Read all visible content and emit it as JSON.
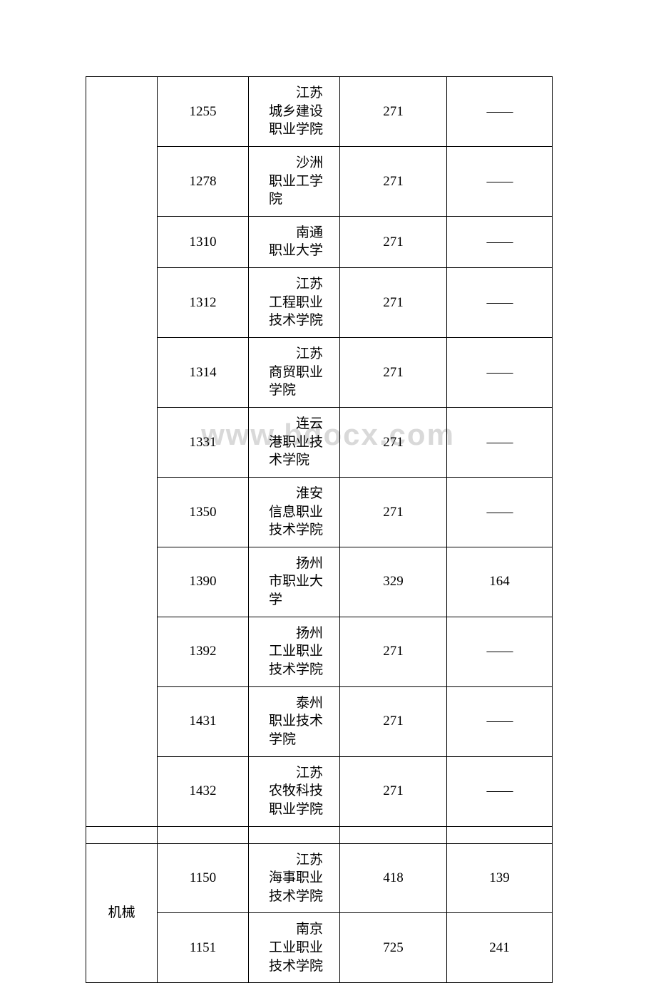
{
  "dash": "——",
  "watermark": "www.bdocx.com",
  "group1_category": "",
  "group1": [
    {
      "code": "1255",
      "school": "江苏城乡建设职业学院",
      "col3": "271",
      "col4": "__DASH__"
    },
    {
      "code": "1278",
      "school": "沙洲职业工学院",
      "col3": "271",
      "col4": "__DASH__"
    },
    {
      "code": "1310",
      "school": "南通职业大学",
      "col3": "271",
      "col4": "__DASH__"
    },
    {
      "code": "1312",
      "school": "江苏工程职业技术学院",
      "col3": "271",
      "col4": "__DASH__"
    },
    {
      "code": "1314",
      "school": "江苏商贸职业学院",
      "col3": "271",
      "col4": "__DASH__"
    },
    {
      "code": "1331",
      "school": "连云港职业技术学院",
      "col3": "271",
      "col4": "__DASH__"
    },
    {
      "code": "1350",
      "school": "淮安信息职业技术学院",
      "col3": "271",
      "col4": "__DASH__"
    },
    {
      "code": "1390",
      "school": "扬州市职业大学",
      "col3": "329",
      "col4": "164"
    },
    {
      "code": "1392",
      "school": "扬州工业职业技术学院",
      "col3": "271",
      "col4": "__DASH__"
    },
    {
      "code": "1431",
      "school": "泰州职业技术学院",
      "col3": "271",
      "col4": "__DASH__"
    },
    {
      "code": "1432",
      "school": "江苏农牧科技职业学院",
      "col3": "271",
      "col4": "__DASH__"
    }
  ],
  "group2_category": "机械",
  "group2": [
    {
      "code": "1150",
      "school": "江苏海事职业技术学院",
      "col3": "418",
      "col4": "139"
    },
    {
      "code": "1151",
      "school": "南京工业职业技术学院",
      "col3": "725",
      "col4": "241"
    }
  ]
}
